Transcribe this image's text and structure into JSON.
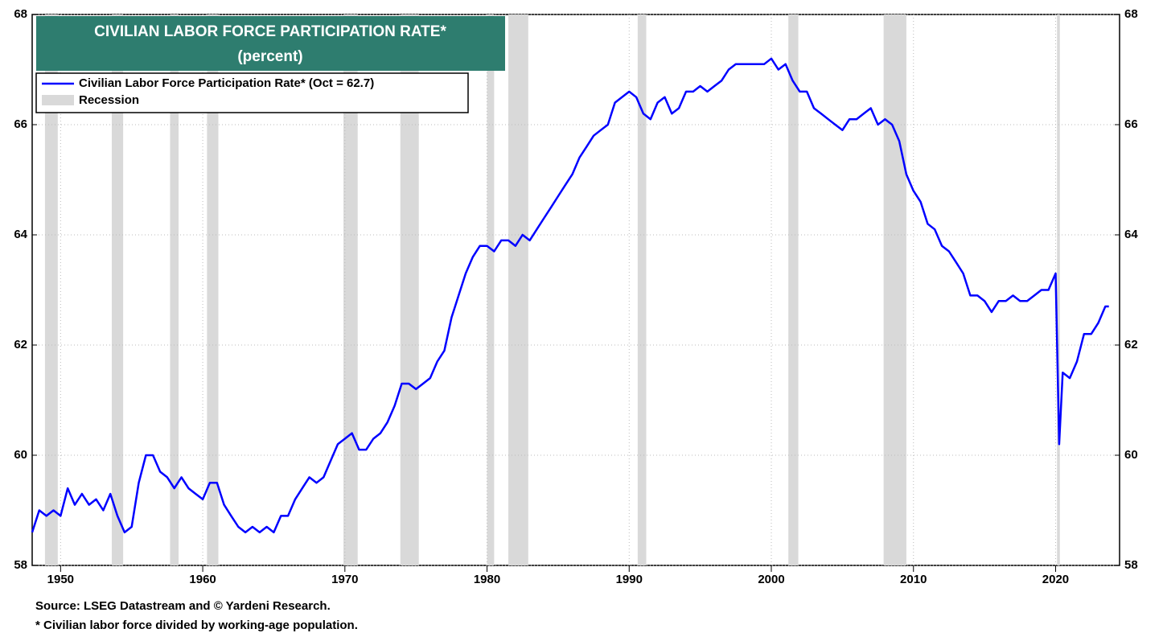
{
  "chart_data": {
    "type": "line",
    "title": "CIVILIAN LABOR FORCE PARTICIPATION RATE*",
    "subtitle": "(percent)",
    "legend": {
      "line": "Civilian Labor Force Participation Rate* (Oct =   62.7)",
      "band": "Recession",
      "corner": "top-left"
    },
    "source": "Source: LSEG Datastream and © Yardeni Research.",
    "note": "* Civilian labor force divided by working-age population.",
    "xlim": [
      1948,
      2024.5
    ],
    "xticks": [
      1950,
      1960,
      1970,
      1980,
      1990,
      2000,
      2010,
      2020
    ],
    "ylim": [
      58,
      68
    ],
    "yticks": [
      58,
      60,
      62,
      64,
      66,
      68
    ],
    "grid": true,
    "recession_color": "#d9d9d9",
    "recessions": [
      [
        1948.9,
        1949.8
      ],
      [
        1953.6,
        1954.4
      ],
      [
        1957.7,
        1958.3
      ],
      [
        1960.3,
        1961.1
      ],
      [
        1969.9,
        1970.9
      ],
      [
        1973.9,
        1975.2
      ],
      [
        1980.0,
        1980.5
      ],
      [
        1981.5,
        1982.9
      ],
      [
        1990.6,
        1991.2
      ],
      [
        2001.2,
        2001.9
      ],
      [
        2007.9,
        2009.5
      ],
      [
        2020.1,
        2020.3
      ]
    ],
    "series": [
      {
        "name": "Civilian Labor Force Participation Rate*",
        "color": "#0000ff",
        "x": [
          1948.0,
          1948.5,
          1949.0,
          1949.5,
          1950.0,
          1950.5,
          1951.0,
          1951.5,
          1952.0,
          1952.5,
          1953.0,
          1953.5,
          1954.0,
          1954.5,
          1955.0,
          1955.5,
          1956.0,
          1956.5,
          1957.0,
          1957.5,
          1958.0,
          1958.5,
          1959.0,
          1959.5,
          1960.0,
          1960.5,
          1961.0,
          1961.5,
          1962.0,
          1962.5,
          1963.0,
          1963.5,
          1964.0,
          1964.5,
          1965.0,
          1965.5,
          1966.0,
          1966.5,
          1967.0,
          1967.5,
          1968.0,
          1968.5,
          1969.0,
          1969.5,
          1970.0,
          1970.5,
          1971.0,
          1971.5,
          1972.0,
          1972.5,
          1973.0,
          1973.5,
          1974.0,
          1974.5,
          1975.0,
          1975.5,
          1976.0,
          1976.5,
          1977.0,
          1977.5,
          1978.0,
          1978.5,
          1979.0,
          1979.5,
          1980.0,
          1980.5,
          1981.0,
          1981.5,
          1982.0,
          1982.5,
          1983.0,
          1983.5,
          1984.0,
          1984.5,
          1985.0,
          1985.5,
          1986.0,
          1986.5,
          1987.0,
          1987.5,
          1988.0,
          1988.5,
          1989.0,
          1989.5,
          1990.0,
          1990.5,
          1991.0,
          1991.5,
          1992.0,
          1992.5,
          1993.0,
          1993.5,
          1994.0,
          1994.5,
          1995.0,
          1995.5,
          1996.0,
          1996.5,
          1997.0,
          1997.5,
          1998.0,
          1998.5,
          1999.0,
          1999.5,
          2000.0,
          2000.5,
          2001.0,
          2001.5,
          2002.0,
          2002.5,
          2003.0,
          2003.5,
          2004.0,
          2004.5,
          2005.0,
          2005.5,
          2006.0,
          2006.5,
          2007.0,
          2007.5,
          2008.0,
          2008.5,
          2009.0,
          2009.5,
          2010.0,
          2010.5,
          2011.0,
          2011.5,
          2012.0,
          2012.5,
          2013.0,
          2013.5,
          2014.0,
          2014.5,
          2015.0,
          2015.5,
          2016.0,
          2016.5,
          2017.0,
          2017.5,
          2018.0,
          2018.5,
          2019.0,
          2019.5,
          2020.0,
          2020.25,
          2020.5,
          2021.0,
          2021.5,
          2022.0,
          2022.5,
          2023.0,
          2023.5,
          2023.75
        ],
        "values": [
          58.6,
          59.0,
          58.9,
          59.0,
          58.9,
          59.4,
          59.1,
          59.3,
          59.1,
          59.2,
          59.0,
          59.3,
          58.9,
          58.6,
          58.7,
          59.5,
          60.0,
          60.0,
          59.7,
          59.6,
          59.4,
          59.6,
          59.4,
          59.3,
          59.2,
          59.5,
          59.5,
          59.1,
          58.9,
          58.7,
          58.6,
          58.7,
          58.6,
          58.7,
          58.6,
          58.9,
          58.9,
          59.2,
          59.4,
          59.6,
          59.5,
          59.6,
          59.9,
          60.2,
          60.3,
          60.4,
          60.1,
          60.1,
          60.3,
          60.4,
          60.6,
          60.9,
          61.3,
          61.3,
          61.2,
          61.3,
          61.4,
          61.7,
          61.9,
          62.5,
          62.9,
          63.3,
          63.6,
          63.8,
          63.8,
          63.7,
          63.9,
          63.9,
          63.8,
          64.0,
          63.9,
          64.1,
          64.3,
          64.5,
          64.7,
          64.9,
          65.1,
          65.4,
          65.6,
          65.8,
          65.9,
          66.0,
          66.4,
          66.5,
          66.6,
          66.5,
          66.2,
          66.1,
          66.4,
          66.5,
          66.2,
          66.3,
          66.6,
          66.6,
          66.7,
          66.6,
          66.7,
          66.8,
          67.0,
          67.1,
          67.1,
          67.1,
          67.1,
          67.1,
          67.2,
          67.0,
          67.1,
          66.8,
          66.6,
          66.6,
          66.3,
          66.2,
          66.1,
          66.0,
          65.9,
          66.1,
          66.1,
          66.2,
          66.3,
          66.0,
          66.1,
          66.0,
          65.7,
          65.1,
          64.8,
          64.6,
          64.2,
          64.1,
          63.8,
          63.7,
          63.5,
          63.3,
          62.9,
          62.9,
          62.8,
          62.6,
          62.8,
          62.8,
          62.9,
          62.8,
          62.8,
          62.9,
          63.0,
          63.0,
          63.3,
          60.2,
          61.5,
          61.4,
          61.7,
          62.2,
          62.2,
          62.4,
          62.7,
          62.7
        ]
      }
    ]
  }
}
